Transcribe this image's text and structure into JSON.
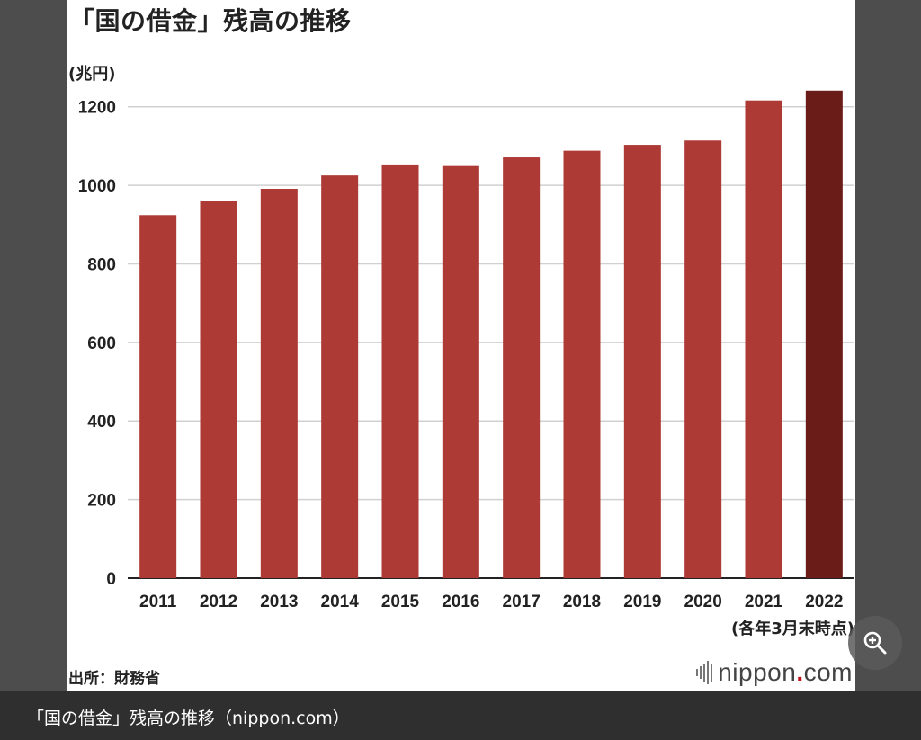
{
  "chart_data": {
    "type": "bar",
    "title": "「国の借金」残高の推移",
    "ylabel": "(兆円)",
    "xlabel": "",
    "categories": [
      "2011",
      "2012",
      "2013",
      "2014",
      "2015",
      "2016",
      "2017",
      "2018",
      "2019",
      "2020",
      "2021",
      "2022"
    ],
    "values": [
      924,
      960,
      991,
      1025,
      1053,
      1049,
      1071,
      1088,
      1103,
      1114,
      1216,
      1241
    ],
    "ylim": [
      0,
      1300
    ],
    "yticks": [
      0,
      200,
      400,
      600,
      800,
      1000,
      1200
    ],
    "grid": true,
    "bar_color": "#ad3a35",
    "highlight_color": "#6a1c19",
    "highlight_index": 11,
    "note": "(各年3月末時点)"
  },
  "source": "出所：財務省",
  "logo": {
    "name": "nippon",
    "dot": ".",
    "suffix": "com"
  },
  "zoom_icon": "zoom-in-icon",
  "caption": "「国の借金」残高の推移（nippon.com）"
}
